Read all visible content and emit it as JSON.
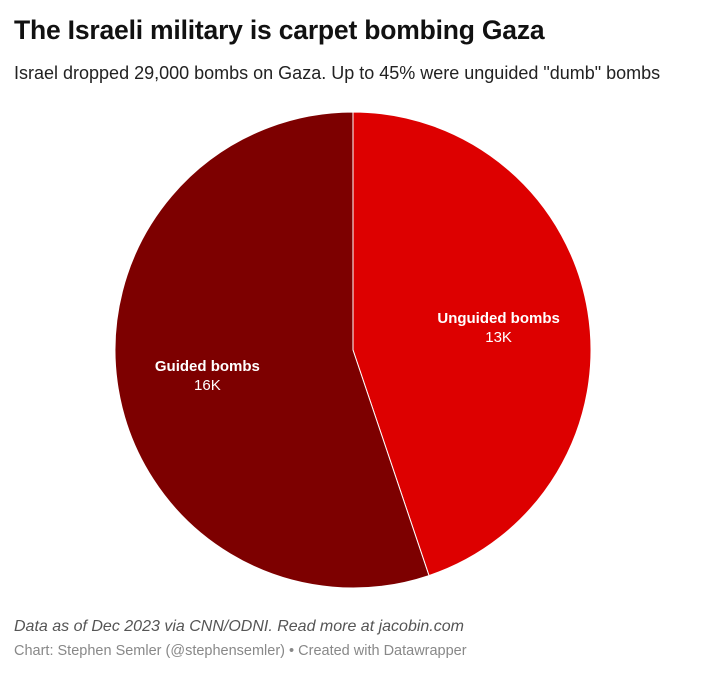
{
  "title": "The Israeli military is carpet bombing Gaza",
  "subtitle": "Israel dropped 29,000 bombs on Gaza. Up to 45% were unguided \"dumb\" bombs",
  "chart_data": {
    "type": "pie",
    "title": "The Israeli military is carpet bombing Gaza",
    "subtitle": "Israel dropped 29,000 bombs on Gaza. Up to 45% were unguided \"dumb\" bombs",
    "slices": [
      {
        "label": "Unguided bombs",
        "value": 13000,
        "display": "13K",
        "color": "#dd0000"
      },
      {
        "label": "Guided bombs",
        "value": 16000,
        "display": "16K",
        "color": "#7d0000"
      }
    ],
    "start": "top, clockwise",
    "legend": "none (direct labels)"
  },
  "footer": {
    "notes": "Data as of Dec 2023 via CNN/ODNI. Read more at jacobin.com",
    "byline": "Chart: Stephen Semler (@stephensemler) • Created with Datawrapper"
  }
}
